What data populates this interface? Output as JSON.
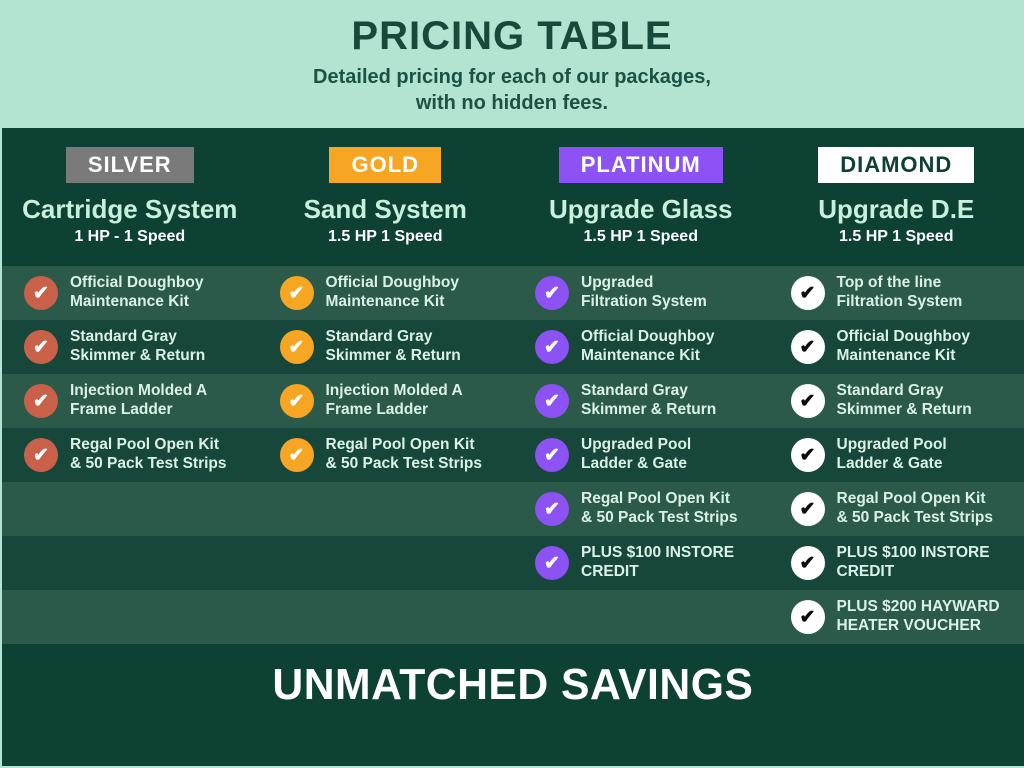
{
  "header": {
    "title": "PRICING TABLE",
    "subtitle": "Detailed pricing for each of our packages,\nwith no hidden fees."
  },
  "columns": [
    {
      "tier": "SILVER",
      "title": "Cartridge System",
      "subtitle": "1 HP - 1 Speed",
      "badge_bg": "#7a7a7a",
      "badge_text": "#ffffff",
      "check_bg": "#c9614a",
      "check_mark": "#ffffff",
      "features": [
        "Official Doughboy\nMaintenance Kit",
        "Standard Gray\nSkimmer & Return",
        "Injection Molded A\nFrame Ladder",
        "Regal Pool Open Kit\n& 50 Pack Test Strips"
      ]
    },
    {
      "tier": "GOLD",
      "title": "Sand System",
      "subtitle": "1.5 HP 1 Speed",
      "badge_bg": "#f6a623",
      "badge_text": "#ffffff",
      "check_bg": "#f6a623",
      "check_mark": "#ffffff",
      "features": [
        "Official Doughboy\nMaintenance Kit",
        "Standard Gray\nSkimmer & Return",
        "Injection Molded A\nFrame Ladder",
        "Regal Pool Open Kit\n& 50 Pack Test Strips"
      ]
    },
    {
      "tier": "PLATINUM",
      "title": "Upgrade Glass",
      "subtitle": "1.5 HP 1 Speed",
      "badge_bg": "#8c52f3",
      "badge_text": "#ffffff",
      "check_bg": "#8c52f3",
      "check_mark": "#ffffff",
      "features": [
        "Upgraded\nFiltration System",
        "Official Doughboy\nMaintenance Kit",
        "Standard Gray\nSkimmer & Return",
        "Upgraded Pool\nLadder & Gate",
        "Regal Pool Open Kit\n& 50 Pack Test Strips",
        "PLUS $100 INSTORE\nCREDIT"
      ]
    },
    {
      "tier": "DIAMOND",
      "title": "Upgrade D.E",
      "subtitle": "1.5 HP 1 Speed",
      "badge_bg": "#ffffff",
      "badge_text": "#0e4134",
      "check_bg": "#ffffff",
      "check_mark": "#0c0c0c",
      "features": [
        "Top of the line\nFiltration System",
        "Official Doughboy\nMaintenance Kit",
        "Standard Gray\nSkimmer & Return",
        "Upgraded Pool\nLadder & Gate",
        "Regal Pool Open Kit\n& 50 Pack Test Strips",
        "PLUS $100 INSTORE\nCREDIT",
        "PLUS $200 HAYWARD\nHEATER VOUCHER"
      ]
    }
  ],
  "footer": {
    "title": "UNMATCHED SAVINGS"
  },
  "icons": {
    "check": "✔"
  },
  "colors": {
    "mint": "#b3e3d1",
    "panel_green": "#0d4134",
    "row_light": "#2b5a4a",
    "row_dark": "#17463a",
    "title_green": "#164a3b",
    "feature_text": "#daf2e6"
  }
}
